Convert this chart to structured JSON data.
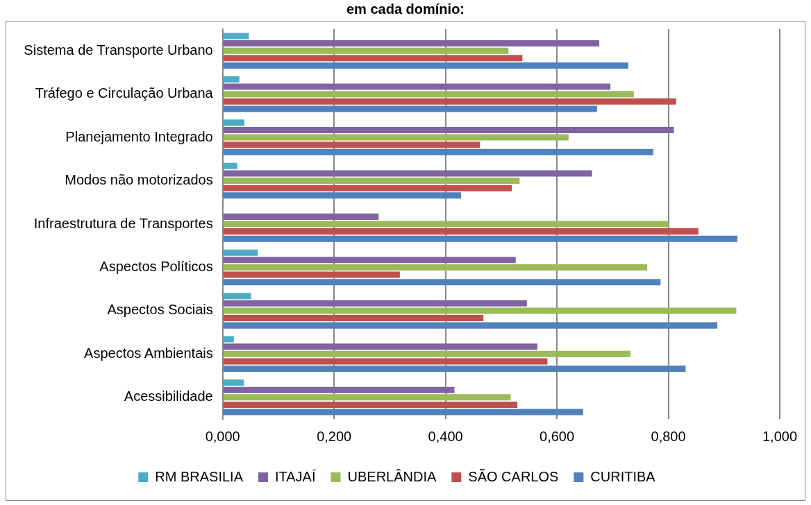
{
  "chart_data": {
    "type": "bar",
    "orientation": "horizontal",
    "title": "em cada domínio:",
    "categories": [
      "Sistema de Transporte Urbano",
      "Tráfego e Circulação Urbana",
      "Planejamento Integrado",
      "Modos não motorizados",
      "Infraestrutura de Transportes",
      "Aspectos Políticos",
      "Aspectos Sociais",
      "Aspectos Ambientais",
      "Acessibilidade"
    ],
    "series": [
      {
        "name": "RM BRASILIA",
        "color": "#4bacc6",
        "values": [
          0.047,
          0.03,
          0.039,
          0.026,
          0,
          0.063,
          0.051,
          0.02,
          0.038
        ]
      },
      {
        "name": "ITAJAÍ",
        "color": "#8064a2",
        "values": [
          0.676,
          0.696,
          0.81,
          0.663,
          0.28,
          0.526,
          0.546,
          0.565,
          0.416
        ]
      },
      {
        "name": "UBERLÂNDIA",
        "color": "#9bbb59",
        "values": [
          0.513,
          0.738,
          0.621,
          0.533,
          0.8,
          0.762,
          0.922,
          0.732,
          0.517
        ]
      },
      {
        "name": "SÃO CARLOS",
        "color": "#c0504d",
        "values": [
          0.538,
          0.814,
          0.462,
          0.519,
          0.854,
          0.318,
          0.468,
          0.583,
          0.529
        ]
      },
      {
        "name": "CURITIBA",
        "color": "#4f81bd",
        "values": [
          0.728,
          0.672,
          0.773,
          0.428,
          0.924,
          0.786,
          0.888,
          0.831,
          0.647
        ]
      }
    ],
    "xlim": [
      0,
      1
    ],
    "xticks": [
      {
        "value": 0,
        "label": "0,000"
      },
      {
        "value": 0.2,
        "label": "0,200"
      },
      {
        "value": 0.4,
        "label": "0,400"
      },
      {
        "value": 0.6,
        "label": "0,600"
      },
      {
        "value": 0.8,
        "label": "0,800"
      },
      {
        "value": 1,
        "label": "1,000"
      }
    ],
    "grid": "x",
    "legend": "bottom"
  }
}
